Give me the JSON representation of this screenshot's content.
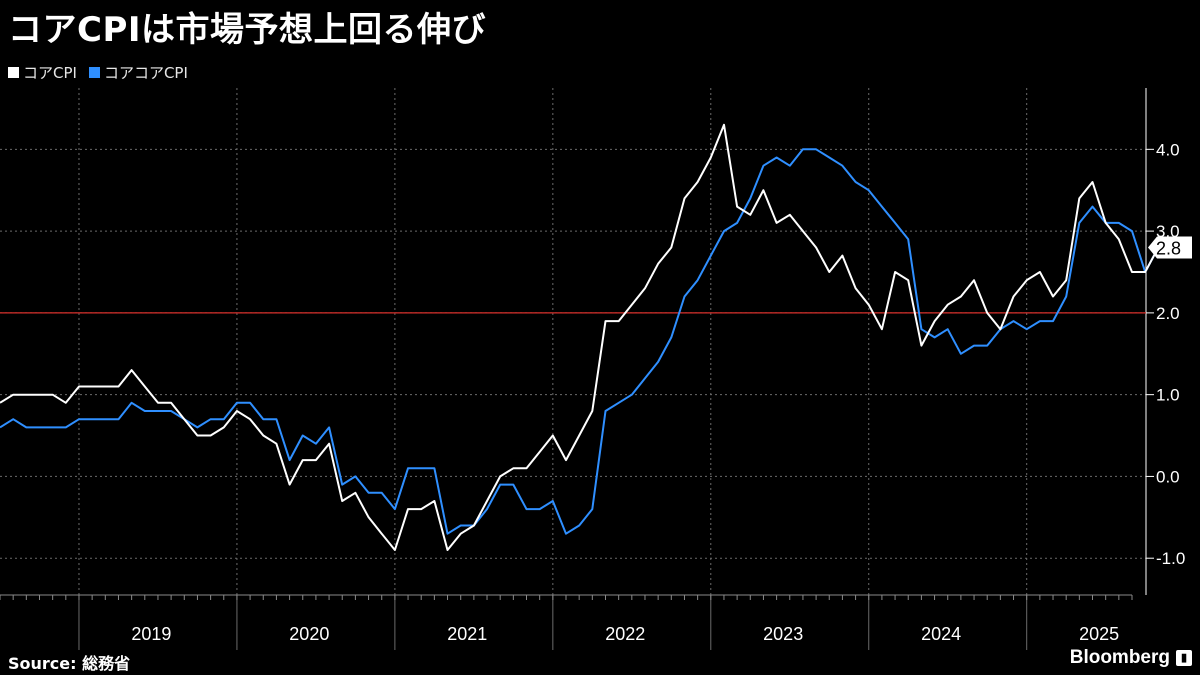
{
  "title": "コアCPIは市場予想上回る伸び",
  "legend": [
    {
      "label": "コアCPI",
      "color": "#ffffff"
    },
    {
      "label": "コアコアCPI",
      "color": "#2f8fff"
    }
  ],
  "source_label": "Source:",
  "source_text": "総務省",
  "brand": "Bloomberg",
  "brand_icon": "bloomberg-terminal-icon",
  "chart_data": {
    "type": "line",
    "title": "コアCPIは市場予想上回る伸び",
    "xlabel": "",
    "ylabel": "",
    "ylim": [
      -1.45,
      4.75
    ],
    "y_ticks": [
      -1.0,
      0.0,
      1.0,
      2.0,
      3.0,
      4.0
    ],
    "y_tick_labels": [
      "-1.0",
      "0.0",
      "1.0",
      "2.0",
      "3.0",
      "4.0"
    ],
    "x_start": "2018-07",
    "x_end": "2025-09",
    "x_tick_labels": [
      "2019",
      "2020",
      "2021",
      "2022",
      "2023",
      "2024",
      "2025"
    ],
    "reference_line": {
      "value": 2.0,
      "color": "#d9302b"
    },
    "last_value_label": "2.8",
    "series": [
      {
        "name": "コアCPI",
        "color": "#ffffff",
        "values": [
          0.9,
          1.0,
          1.0,
          1.0,
          1.0,
          0.9,
          1.1,
          1.1,
          1.1,
          1.1,
          1.3,
          1.1,
          0.9,
          0.9,
          0.7,
          0.5,
          0.5,
          0.6,
          0.8,
          0.7,
          0.5,
          0.4,
          -0.1,
          0.2,
          0.2,
          0.4,
          -0.3,
          -0.2,
          -0.5,
          -0.7,
          -0.9,
          -0.4,
          -0.4,
          -0.3,
          -0.9,
          -0.7,
          -0.6,
          -0.3,
          0.0,
          0.1,
          0.1,
          0.3,
          0.5,
          0.2,
          0.5,
          0.8,
          1.9,
          1.9,
          2.1,
          2.3,
          2.6,
          2.8,
          3.4,
          3.6,
          3.9,
          4.3,
          3.3,
          3.2,
          3.5,
          3.1,
          3.2,
          3.0,
          2.8,
          2.5,
          2.7,
          2.3,
          2.1,
          1.8,
          2.5,
          2.4,
          1.6,
          1.9,
          2.1,
          2.2,
          2.4,
          2.0,
          1.8,
          2.2,
          2.4,
          2.5,
          2.2,
          2.4,
          3.4,
          3.6,
          3.1,
          2.9,
          2.5,
          2.5,
          2.8,
          2.8
        ]
      },
      {
        "name": "コアコアCPI",
        "color": "#2f8fff",
        "values": [
          0.6,
          0.7,
          0.6,
          0.6,
          0.6,
          0.6,
          0.7,
          0.7,
          0.7,
          0.7,
          0.9,
          0.8,
          0.8,
          0.8,
          0.7,
          0.6,
          0.7,
          0.7,
          0.9,
          0.9,
          0.7,
          0.7,
          0.2,
          0.5,
          0.4,
          0.6,
          -0.1,
          0.0,
          -0.2,
          -0.2,
          -0.4,
          0.1,
          0.1,
          0.1,
          -0.7,
          -0.6,
          -0.6,
          -0.4,
          -0.1,
          -0.1,
          -0.4,
          -0.4,
          -0.3,
          -0.7,
          -0.6,
          -0.4,
          0.8,
          0.9,
          1.0,
          1.2,
          1.4,
          1.7,
          2.2,
          2.4,
          2.7,
          3.0,
          3.1,
          3.4,
          3.8,
          3.9,
          3.8,
          4.0,
          4.0,
          3.9,
          3.8,
          3.6,
          3.5,
          3.3,
          3.1,
          2.9,
          1.8,
          1.7,
          1.8,
          1.5,
          1.6,
          1.6,
          1.8,
          1.9,
          1.8,
          1.9,
          1.9,
          2.2,
          3.1,
          3.3,
          3.1,
          3.1,
          3.0,
          2.5,
          2.8,
          2.8
        ]
      }
    ]
  }
}
